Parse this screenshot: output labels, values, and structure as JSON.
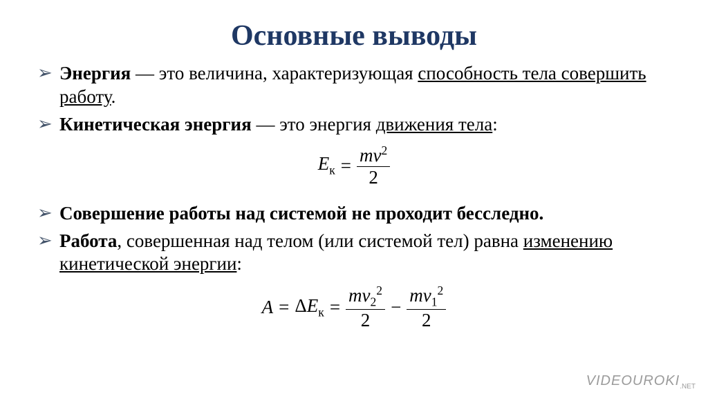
{
  "colors": {
    "title_color": "#1f3864",
    "bullet_color": "#44546a",
    "text_color": "#000000",
    "background_color": "#ffffff",
    "watermark_color": "#9b9b9b"
  },
  "title": "Основные выводы",
  "bullets": [
    {
      "lead_bold": "Энергия",
      "middle": " — это величина, характеризующая ",
      "underlined": "способность тела совершить работу",
      "tail": "."
    },
    {
      "lead_bold": "Кинетическая энергия",
      "middle": " — это энергия ",
      "underlined": "движения тела",
      "tail": ":"
    },
    {
      "lead_bold": "Совершение работы над системой не проходит бесследно.",
      "middle": "",
      "underlined": "",
      "tail": ""
    },
    {
      "lead_bold": "Работа",
      "middle": ", совершенная над телом (или системой тел) равна ",
      "underlined": "изменению кинетической энергии",
      "tail": ":"
    }
  ],
  "formula1": {
    "lhs_var": "E",
    "lhs_sub": "к",
    "eq": "=",
    "num_m": "m",
    "num_v": "v",
    "num_sup": "2",
    "den": "2"
  },
  "formula2": {
    "A": "A",
    "eq1": "=",
    "delta": "Δ",
    "E": "E",
    "E_sub": "к",
    "eq2": "=",
    "t2_m": "m",
    "t2_v": "v",
    "t2_sub": "2",
    "t2_sup": "2",
    "t2_den": "2",
    "minus": "−",
    "t1_m": "m",
    "t1_v": "v",
    "t1_sub": "1",
    "t1_sup": "2",
    "t1_den": "2"
  },
  "watermark": {
    "main": "VIDEOUROKI",
    "suffix": ".NET"
  }
}
